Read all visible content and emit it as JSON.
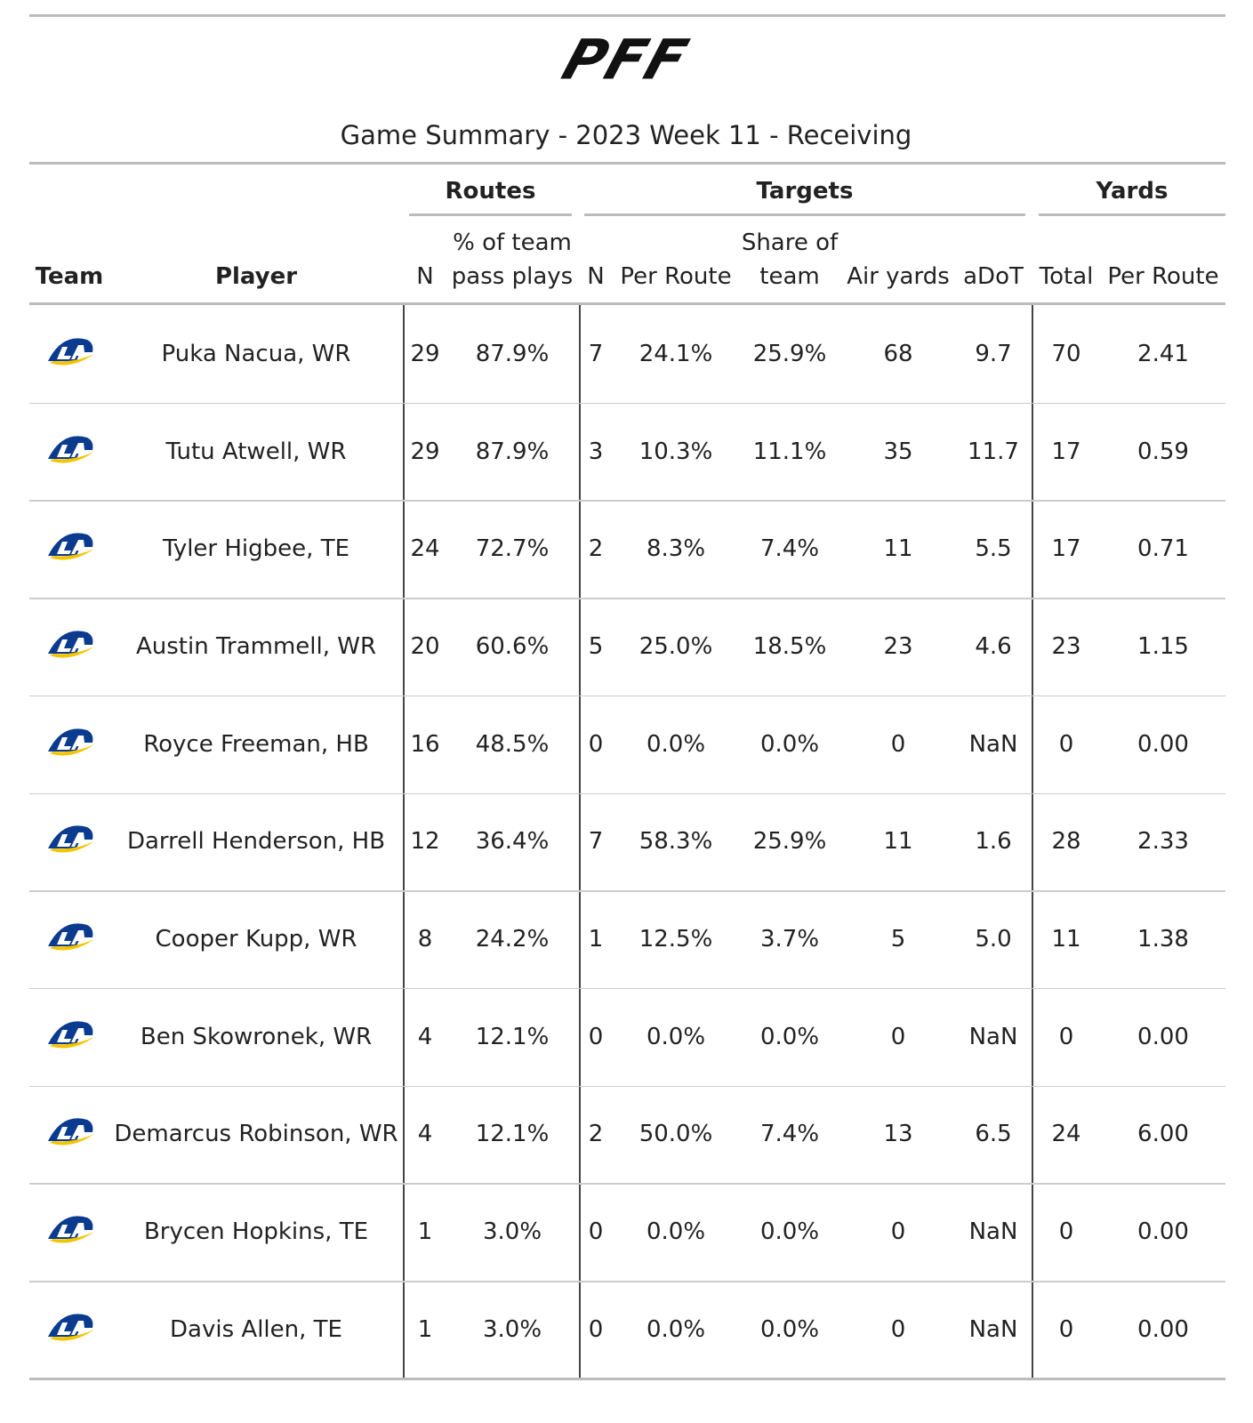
{
  "header": {
    "logo": "PFF",
    "title": "Game Summary - 2023 Week 11 - Receiving"
  },
  "table": {
    "groups": [
      {
        "label": "Routes"
      },
      {
        "label": "Targets"
      },
      {
        "label": "Yards"
      }
    ],
    "columns": [
      "Team",
      "Player",
      "N",
      "% of team pass plays",
      "N",
      "Per Route",
      "Share of team",
      "Air yards",
      "aDoT",
      "Total",
      "Per Route"
    ],
    "rows": [
      [
        "Puka Nacua, WR",
        "29",
        "87.9%",
        "7",
        "24.1%",
        "25.9%",
        "68",
        "9.7",
        "70",
        "2.41"
      ],
      [
        "Tutu Atwell, WR",
        "29",
        "87.9%",
        "3",
        "10.3%",
        "11.1%",
        "35",
        "11.7",
        "17",
        "0.59"
      ],
      [
        "Tyler Higbee, TE",
        "24",
        "72.7%",
        "2",
        "8.3%",
        "7.4%",
        "11",
        "5.5",
        "17",
        "0.71"
      ],
      [
        "Austin Trammell, WR",
        "20",
        "60.6%",
        "5",
        "25.0%",
        "18.5%",
        "23",
        "4.6",
        "23",
        "1.15"
      ],
      [
        "Royce Freeman, HB",
        "16",
        "48.5%",
        "0",
        "0.0%",
        "0.0%",
        "0",
        "NaN",
        "0",
        "0.00"
      ],
      [
        "Darrell Henderson, HB",
        "12",
        "36.4%",
        "7",
        "58.3%",
        "25.9%",
        "11",
        "1.6",
        "28",
        "2.33"
      ],
      [
        "Cooper Kupp, WR",
        "8",
        "24.2%",
        "1",
        "12.5%",
        "3.7%",
        "5",
        "5.0",
        "11",
        "1.38"
      ],
      [
        "Ben Skowronek, WR",
        "4",
        "12.1%",
        "0",
        "0.0%",
        "0.0%",
        "0",
        "NaN",
        "0",
        "0.00"
      ],
      [
        "Demarcus Robinson, WR",
        "4",
        "12.1%",
        "2",
        "50.0%",
        "7.4%",
        "13",
        "6.5",
        "24",
        "6.00"
      ],
      [
        "Brycen Hopkins, TE",
        "1",
        "3.0%",
        "0",
        "0.0%",
        "0.0%",
        "0",
        "NaN",
        "0",
        "0.00"
      ],
      [
        "Davis Allen, TE",
        "1",
        "3.0%",
        "0",
        "0.0%",
        "0.0%",
        "0",
        "NaN",
        "0",
        "0.00"
      ]
    ]
  }
}
